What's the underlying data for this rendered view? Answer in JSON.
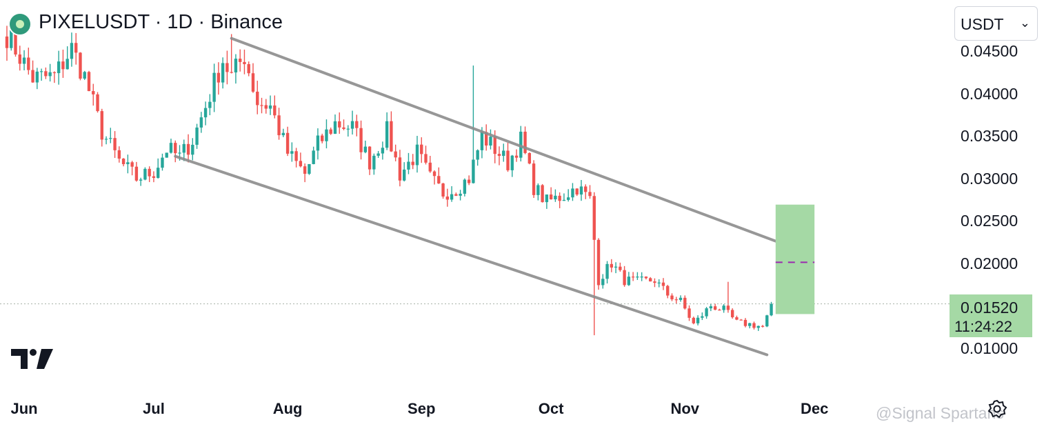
{
  "header": {
    "title": "PIXELUSDT · 1D · Binance",
    "symbol_icon": "pixel-token-icon"
  },
  "currency_select": {
    "label": "USDT",
    "icon": "chevron-down-icon"
  },
  "price_tag": {
    "value": "0.01520",
    "countdown": "11:24:22"
  },
  "watermark": "@Signal Spartans",
  "colors": {
    "up": "#26a69a",
    "down": "#ef5350",
    "channel": "#8c8c8c",
    "target_zone": "#a5d9a5",
    "target_line": "#9c27b0"
  },
  "chart_data": {
    "type": "candlestick",
    "title": "PIXELUSDT · 1D · Binance",
    "x_ticks": [
      "Jun",
      "Jul",
      "Aug",
      "Sep",
      "Oct",
      "Nov",
      "Dec"
    ],
    "y_ticks": [
      "0.04500",
      "0.04000",
      "0.03500",
      "0.03000",
      "0.02500",
      "0.02000",
      "0.01000"
    ],
    "ylim": [
      0.0055,
      0.0498
    ],
    "xlim": [
      "2024-05-28",
      "2024-12-08"
    ],
    "last_price": 0.0152,
    "close_path": [
      [
        "2024-05-28",
        0.047
      ],
      [
        "2024-06-03",
        0.0418
      ],
      [
        "2024-06-08",
        0.042
      ],
      [
        "2024-06-12",
        0.0453
      ],
      [
        "2024-06-15",
        0.042
      ],
      [
        "2024-06-19",
        0.0355
      ],
      [
        "2024-06-23",
        0.032
      ],
      [
        "2024-06-27",
        0.03
      ],
      [
        "2024-07-01",
        0.0308
      ],
      [
        "2024-07-04",
        0.0335
      ],
      [
        "2024-07-07",
        0.0325
      ],
      [
        "2024-07-10",
        0.0345
      ],
      [
        "2024-07-13",
        0.0385
      ],
      [
        "2024-07-17",
        0.044
      ],
      [
        "2024-07-19",
        0.042
      ],
      [
        "2024-07-22",
        0.0445
      ],
      [
        "2024-07-25",
        0.039
      ],
      [
        "2024-07-28",
        0.0385
      ],
      [
        "2024-08-01",
        0.033
      ],
      [
        "2024-08-05",
        0.0305
      ],
      [
        "2024-08-08",
        0.034
      ],
      [
        "2024-08-12",
        0.0365
      ],
      [
        "2024-08-16",
        0.036
      ],
      [
        "2024-08-20",
        0.032
      ],
      [
        "2024-08-24",
        0.0355
      ],
      [
        "2024-08-27",
        0.0305
      ],
      [
        "2024-08-31",
        0.033
      ],
      [
        "2024-09-03",
        0.03
      ],
      [
        "2024-09-06",
        0.0283
      ],
      [
        "2024-09-09",
        0.0288
      ],
      [
        "2024-09-12",
        0.03
      ],
      [
        "2024-09-15",
        0.035
      ],
      [
        "2024-09-18",
        0.0335
      ],
      [
        "2024-09-21",
        0.0318
      ],
      [
        "2024-09-24",
        0.0345
      ],
      [
        "2024-09-27",
        0.029
      ],
      [
        "2024-09-30",
        0.0272
      ],
      [
        "2024-10-04",
        0.028
      ],
      [
        "2024-10-07",
        0.029
      ],
      [
        "2024-10-10",
        0.0275
      ],
      [
        "2024-10-12",
        0.018
      ],
      [
        "2024-10-15",
        0.02
      ],
      [
        "2024-10-18",
        0.018
      ],
      [
        "2024-10-21",
        0.0178
      ],
      [
        "2024-10-25",
        0.018
      ],
      [
        "2024-10-28",
        0.0163
      ],
      [
        "2024-10-31",
        0.0155
      ],
      [
        "2024-11-03",
        0.0128
      ],
      [
        "2024-11-07",
        0.015
      ],
      [
        "2024-11-10",
        0.0145
      ],
      [
        "2024-11-13",
        0.013
      ],
      [
        "2024-11-16",
        0.0128
      ],
      [
        "2024-11-19",
        0.0125
      ],
      [
        "2024-11-21",
        0.0152
      ]
    ],
    "wicks": [
      [
        "2024-07-19",
        0.047
      ],
      [
        "2024-09-13",
        0.0433
      ],
      [
        "2024-10-11",
        0.0115
      ],
      [
        "2024-11-11",
        0.0178
      ]
    ],
    "annotations": {
      "channel_upper": [
        [
          "2024-07-19",
          0.0465
        ],
        [
          "2024-11-22",
          0.0226
        ]
      ],
      "channel_lower": [
        [
          "2024-07-06",
          0.0326
        ],
        [
          "2024-11-20",
          0.0092
        ]
      ],
      "target_zone": {
        "x": [
          "2024-11-22",
          "2024-12-01"
        ],
        "y": [
          0.014,
          0.0269
        ]
      },
      "target_line": 0.0201
    }
  }
}
